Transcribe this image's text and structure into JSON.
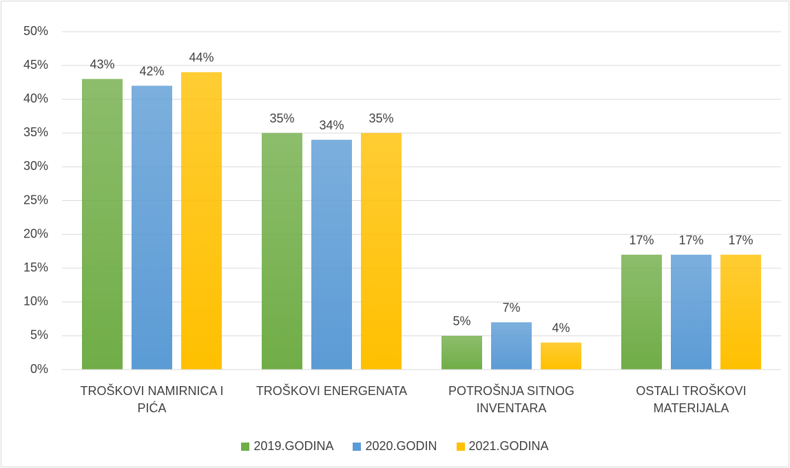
{
  "chart_data": {
    "type": "bar",
    "categories": [
      "TROŠKOVI NAMIRNICA I PIĆA",
      "TROŠKOVI ENERGENATA",
      "POTROŠNJA SITNOG INVENTARA",
      "OSTALI TROŠKOVI MATERIJALA"
    ],
    "series": [
      {
        "name": "2019.GODINA",
        "color": "#70ad47",
        "values": [
          43,
          35,
          5,
          17
        ],
        "value_labels": [
          "43%",
          "35%",
          "5%",
          "17%"
        ]
      },
      {
        "name": "2020.GODIN",
        "color": "#5b9bd5",
        "values": [
          42,
          34,
          7,
          17
        ],
        "value_labels": [
          "42%",
          "34%",
          "7%",
          "17%"
        ]
      },
      {
        "name": "2021.GODINA",
        "color": "#ffc000",
        "values": [
          44,
          35,
          4,
          17
        ],
        "value_labels": [
          "44%",
          "35%",
          "4%",
          "17%"
        ]
      }
    ],
    "ylim": [
      0,
      50
    ],
    "yticks": [
      {
        "value": 0,
        "label": "0%"
      },
      {
        "value": 5,
        "label": "5%"
      },
      {
        "value": 10,
        "label": "10%"
      },
      {
        "value": 15,
        "label": "15%"
      },
      {
        "value": 20,
        "label": "20%"
      },
      {
        "value": 25,
        "label": "25%"
      },
      {
        "value": 30,
        "label": "30%"
      },
      {
        "value": 35,
        "label": "35%"
      },
      {
        "value": 40,
        "label": "40%"
      },
      {
        "value": 45,
        "label": "45%"
      },
      {
        "value": 50,
        "label": "50%"
      }
    ],
    "grid": true,
    "legend": "bottom"
  }
}
